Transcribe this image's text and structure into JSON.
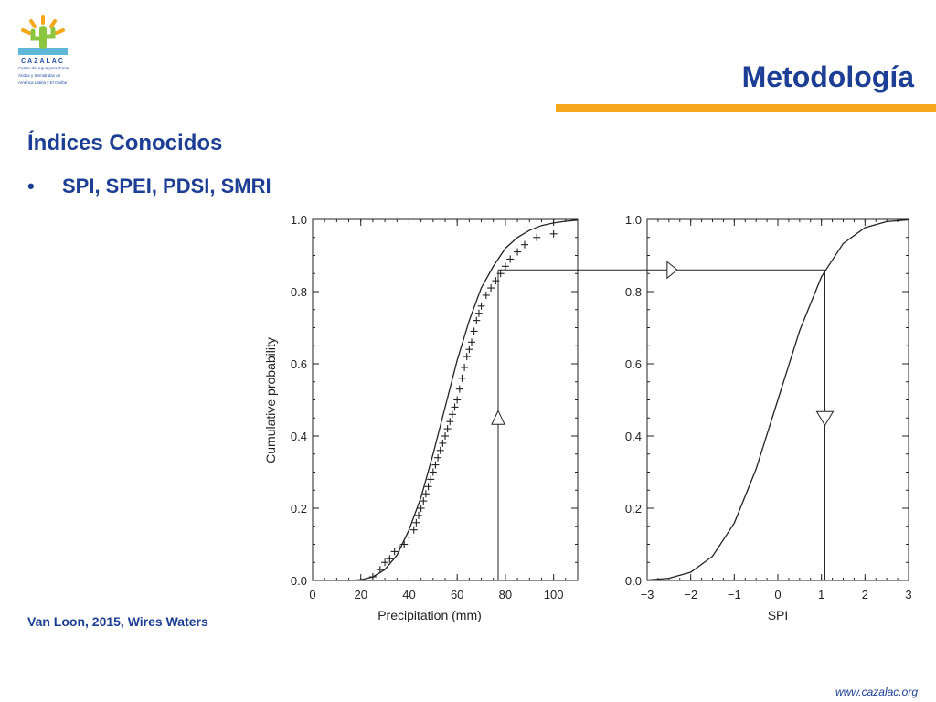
{
  "logo": {
    "name": "CAZALAC",
    "tagline": [
      "Centro del Agua para Zonas",
      "Áridas y Semiáridas de",
      "América Latina y El Caribe"
    ]
  },
  "header": {
    "title": "Metodología"
  },
  "content": {
    "heading": "Índices Conocidos",
    "bullets": [
      {
        "marker": "•",
        "text": "SPI, SPEI, PDSI, SMRI"
      }
    ],
    "citation": "Van Loon, 2015, Wires Waters"
  },
  "footer": {
    "url": "www.cazalac.org"
  },
  "colors": {
    "title": "#1c3e94",
    "accent_bar": "#f5a81c",
    "plot_line": "#222222"
  },
  "chart_data": [
    {
      "type": "scatter",
      "title": "",
      "xlabel": "Precipitation (mm)",
      "ylabel": "Cumulative probability",
      "xlim": [
        0,
        110
      ],
      "ylim": [
        0,
        1.0
      ],
      "xticks": [
        "0",
        "20",
        "40",
        "60",
        "80",
        "100"
      ],
      "yticks": [
        "0.0",
        "0.2",
        "0.4",
        "0.6",
        "0.8",
        "1.0"
      ],
      "grid": false,
      "series": [
        {
          "kind": "line",
          "x": [
            15,
            20,
            25,
            30,
            35,
            40,
            45,
            50,
            55,
            60,
            65,
            70,
            75,
            80,
            85,
            90,
            95,
            100,
            105,
            110
          ],
          "y": [
            0.0,
            0.002,
            0.01,
            0.03,
            0.07,
            0.14,
            0.23,
            0.35,
            0.48,
            0.61,
            0.72,
            0.81,
            0.87,
            0.92,
            0.95,
            0.97,
            0.983,
            0.99,
            0.995,
            0.998
          ]
        },
        {
          "kind": "markers",
          "marker": "+",
          "x": [
            25,
            28,
            30,
            32,
            34,
            36,
            38,
            40,
            42,
            43,
            44,
            45,
            46,
            47,
            48,
            49,
            50,
            51,
            52,
            53,
            54,
            55,
            56,
            57,
            58,
            59,
            60,
            61,
            62,
            63,
            64,
            65,
            66,
            67,
            68,
            69,
            70,
            72,
            74,
            76,
            78,
            80,
            82,
            85,
            88,
            93,
            100
          ],
          "y": [
            0.01,
            0.03,
            0.05,
            0.06,
            0.08,
            0.09,
            0.1,
            0.12,
            0.14,
            0.16,
            0.18,
            0.2,
            0.22,
            0.24,
            0.26,
            0.28,
            0.3,
            0.32,
            0.34,
            0.36,
            0.38,
            0.4,
            0.42,
            0.44,
            0.46,
            0.48,
            0.5,
            0.53,
            0.56,
            0.59,
            0.62,
            0.64,
            0.66,
            0.69,
            0.72,
            0.74,
            0.76,
            0.79,
            0.81,
            0.83,
            0.85,
            0.87,
            0.89,
            0.91,
            0.93,
            0.95,
            0.96
          ]
        }
      ],
      "annotations": [
        {
          "type": "vertical-line",
          "x": 77,
          "y_from": 0,
          "y_to": 0.86
        },
        {
          "type": "horizontal-line",
          "y": 0.86,
          "from_x": 77,
          "to": "right-panel"
        },
        {
          "type": "up-triangle-marker",
          "x": 77,
          "y": 0.45
        }
      ]
    },
    {
      "type": "line",
      "title": "",
      "xlabel": "SPI",
      "ylabel": "",
      "xlim": [
        -3,
        3
      ],
      "ylim": [
        0,
        1.0
      ],
      "xticks": [
        "−3",
        "−2",
        "−1",
        "0",
        "1",
        "2",
        "3"
      ],
      "yticks": [
        "0.0",
        "0.2",
        "0.4",
        "0.6",
        "0.8",
        "1.0"
      ],
      "grid": false,
      "series": [
        {
          "kind": "line",
          "x": [
            -3.0,
            -2.5,
            -2.0,
            -1.5,
            -1.0,
            -0.5,
            0.0,
            0.5,
            1.0,
            1.5,
            2.0,
            2.5,
            3.0
          ],
          "y": [
            0.0013,
            0.0062,
            0.0228,
            0.0668,
            0.1587,
            0.3085,
            0.5,
            0.6915,
            0.8413,
            0.9332,
            0.9772,
            0.9938,
            0.9987
          ]
        }
      ],
      "annotations": [
        {
          "type": "horizontal-line",
          "y": 0.86,
          "to_x": 1.08
        },
        {
          "type": "vertical-line",
          "x": 1.08,
          "y_from": 0.86,
          "y_to": 0
        },
        {
          "type": "right-triangle-marker",
          "x": -2.5,
          "y": 0.86
        },
        {
          "type": "down-triangle-marker",
          "x": 1.08,
          "y": 0.45
        }
      ]
    }
  ]
}
